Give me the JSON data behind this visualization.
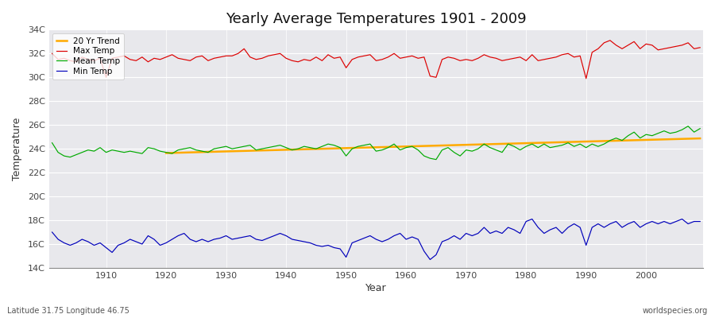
{
  "title": "Yearly Average Temperatures 1901 - 2009",
  "xlabel": "Year",
  "ylabel": "Temperature",
  "subtitle_left": "Latitude 31.75 Longitude 46.75",
  "subtitle_right": "worldspecies.org",
  "years": [
    1901,
    1902,
    1903,
    1904,
    1905,
    1906,
    1907,
    1908,
    1909,
    1910,
    1911,
    1912,
    1913,
    1914,
    1915,
    1916,
    1917,
    1918,
    1919,
    1920,
    1921,
    1922,
    1923,
    1924,
    1925,
    1926,
    1927,
    1928,
    1929,
    1930,
    1931,
    1932,
    1933,
    1934,
    1935,
    1936,
    1937,
    1938,
    1939,
    1940,
    1941,
    1942,
    1943,
    1944,
    1945,
    1946,
    1947,
    1948,
    1949,
    1950,
    1951,
    1952,
    1953,
    1954,
    1955,
    1956,
    1957,
    1958,
    1959,
    1960,
    1961,
    1962,
    1963,
    1964,
    1965,
    1966,
    1967,
    1968,
    1969,
    1970,
    1971,
    1972,
    1973,
    1974,
    1975,
    1976,
    1977,
    1978,
    1979,
    1980,
    1981,
    1982,
    1983,
    1984,
    1985,
    1986,
    1987,
    1988,
    1989,
    1990,
    1991,
    1992,
    1993,
    1994,
    1995,
    1996,
    1997,
    1998,
    1999,
    2000,
    2001,
    2002,
    2003,
    2004,
    2005,
    2006,
    2007,
    2008,
    2009
  ],
  "max_temp": [
    32.0,
    31.5,
    31.6,
    31.4,
    31.3,
    31.7,
    31.5,
    31.4,
    31.6,
    30.0,
    31.6,
    31.7,
    31.8,
    31.5,
    31.4,
    31.7,
    31.3,
    31.6,
    31.5,
    31.7,
    31.9,
    31.6,
    31.5,
    31.4,
    31.7,
    31.8,
    31.4,
    31.6,
    31.7,
    31.8,
    31.8,
    32.0,
    32.4,
    31.7,
    31.5,
    31.6,
    31.8,
    31.9,
    32.0,
    31.6,
    31.4,
    31.3,
    31.5,
    31.4,
    31.7,
    31.4,
    31.9,
    31.6,
    31.7,
    30.8,
    31.5,
    31.7,
    31.8,
    31.9,
    31.4,
    31.5,
    31.7,
    32.0,
    31.6,
    31.7,
    31.8,
    31.6,
    31.7,
    30.1,
    30.0,
    31.5,
    31.7,
    31.6,
    31.4,
    31.5,
    31.4,
    31.6,
    31.9,
    31.7,
    31.6,
    31.4,
    31.5,
    31.6,
    31.7,
    31.4,
    31.9,
    31.4,
    31.5,
    31.6,
    31.7,
    31.9,
    32.0,
    31.7,
    31.8,
    29.9,
    32.1,
    32.4,
    32.9,
    33.1,
    32.7,
    32.4,
    32.7,
    33.0,
    32.4,
    32.8,
    32.7,
    32.3,
    32.4,
    32.5,
    32.6,
    32.7,
    32.9,
    32.4,
    32.5
  ],
  "mean_temp": [
    24.5,
    23.7,
    23.4,
    23.3,
    23.5,
    23.7,
    23.9,
    23.8,
    24.1,
    23.7,
    23.9,
    23.8,
    23.7,
    23.8,
    23.7,
    23.6,
    24.1,
    24.0,
    23.8,
    23.7,
    23.6,
    23.9,
    24.0,
    24.1,
    23.9,
    23.8,
    23.7,
    24.0,
    24.1,
    24.2,
    24.0,
    24.1,
    24.2,
    24.3,
    23.9,
    24.0,
    24.1,
    24.2,
    24.3,
    24.1,
    23.9,
    24.0,
    24.2,
    24.1,
    24.0,
    24.2,
    24.4,
    24.3,
    24.1,
    23.4,
    24.0,
    24.2,
    24.3,
    24.4,
    23.8,
    23.9,
    24.1,
    24.4,
    23.9,
    24.1,
    24.2,
    23.9,
    23.4,
    23.2,
    23.1,
    23.9,
    24.1,
    23.7,
    23.4,
    23.9,
    23.8,
    24.0,
    24.4,
    24.1,
    23.9,
    23.7,
    24.4,
    24.2,
    23.9,
    24.2,
    24.4,
    24.1,
    24.4,
    24.1,
    24.2,
    24.3,
    24.5,
    24.2,
    24.4,
    24.1,
    24.4,
    24.2,
    24.4,
    24.7,
    24.9,
    24.7,
    25.1,
    25.4,
    24.9,
    25.2,
    25.1,
    25.3,
    25.5,
    25.3,
    25.4,
    25.6,
    25.9,
    25.4,
    25.7
  ],
  "min_temp": [
    17.0,
    16.4,
    16.1,
    15.9,
    16.1,
    16.4,
    16.2,
    15.9,
    16.1,
    15.7,
    15.3,
    15.9,
    16.1,
    16.4,
    16.2,
    16.0,
    16.7,
    16.4,
    15.9,
    16.1,
    16.4,
    16.7,
    16.9,
    16.4,
    16.2,
    16.4,
    16.2,
    16.4,
    16.5,
    16.7,
    16.4,
    16.5,
    16.6,
    16.7,
    16.4,
    16.3,
    16.5,
    16.7,
    16.9,
    16.7,
    16.4,
    16.3,
    16.2,
    16.1,
    15.9,
    15.8,
    15.9,
    15.7,
    15.6,
    14.9,
    16.1,
    16.3,
    16.5,
    16.7,
    16.4,
    16.2,
    16.4,
    16.7,
    16.9,
    16.4,
    16.6,
    16.4,
    15.4,
    14.7,
    15.1,
    16.2,
    16.4,
    16.7,
    16.4,
    16.9,
    16.7,
    16.9,
    17.4,
    16.9,
    17.1,
    16.9,
    17.4,
    17.2,
    16.9,
    17.9,
    18.1,
    17.4,
    16.9,
    17.2,
    17.4,
    16.9,
    17.4,
    17.7,
    17.4,
    15.9,
    17.4,
    17.7,
    17.4,
    17.7,
    17.9,
    17.4,
    17.7,
    17.9,
    17.4,
    17.7,
    17.9,
    17.7,
    17.9,
    17.7,
    17.9,
    18.1,
    17.7,
    17.9,
    17.9
  ],
  "ylim": [
    14,
    34
  ],
  "yticks": [
    14,
    16,
    18,
    20,
    22,
    24,
    26,
    28,
    30,
    32,
    34
  ],
  "ytick_labels": [
    "14C",
    "16C",
    "18C",
    "20C",
    "22C",
    "24C",
    "26C",
    "28C",
    "30C",
    "32C",
    "34C"
  ],
  "background_color": "#ffffff",
  "plot_bg_color": "#e8e8ec",
  "max_color": "#dd0000",
  "mean_color": "#00aa00",
  "min_color": "#0000bb",
  "trend_color": "#ffaa00",
  "grid_color": "#ffffff",
  "legend_labels": [
    "Max Temp",
    "Mean Temp",
    "Min Temp",
    "20 Yr Trend"
  ]
}
